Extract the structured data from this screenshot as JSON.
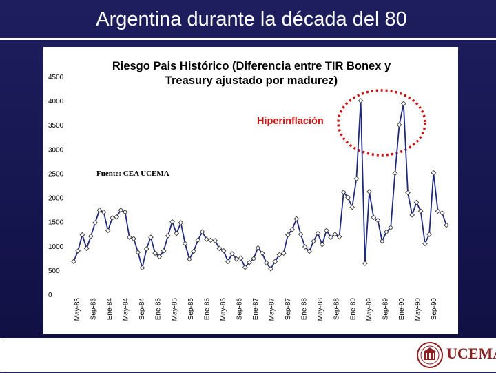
{
  "slide": {
    "title": "Argentina durante la década del 80"
  },
  "chart_data": {
    "type": "line",
    "title": "Riesgo Pais Histórico (Diferencia entre TIR Bonex y Treasury ajustado por madurez)",
    "title_lines": [
      "Riesgo Pais Histórico (Diferencia entre TIR Bonex y",
      "Treasury ajustado por madurez)"
    ],
    "source_note": "Fuente: CEA UCEMA",
    "annotation": "Hiperinflación",
    "xlabel": "",
    "ylabel": "",
    "ylim": [
      0,
      4500
    ],
    "y_ticks": [
      0,
      500,
      1000,
      1500,
      2000,
      2500,
      3000,
      3500,
      4000,
      4500
    ],
    "x_tick_labels": [
      "May-83",
      "Sep-83",
      "Ene-84",
      "May-84",
      "Sep-84",
      "Ene-85",
      "May-85",
      "Sep-85",
      "Ene-86",
      "May-86",
      "Sep-86",
      "Ene-87",
      "May-87",
      "Sep-87",
      "Ene-88",
      "May-88",
      "Sep-88",
      "Ene-89",
      "May-89",
      "Sep-89",
      "Ene-90",
      "May-90",
      "Sep-90"
    ],
    "grid": false,
    "line_color": "#1f2a7a",
    "annotation_color": "#cc1111",
    "series": [
      {
        "values": [
          680,
          900,
          1230,
          950,
          1200,
          1480,
          1740,
          1700,
          1320,
          1580,
          1600,
          1740,
          1700,
          1180,
          1150,
          870,
          550,
          940,
          1180,
          850,
          780,
          900,
          1210,
          1500,
          1260,
          1480,
          1050,
          730,
          890,
          1120,
          1290,
          1140,
          1120,
          1110,
          950,
          900,
          680,
          840,
          730,
          750,
          560,
          660,
          740,
          960,
          850,
          650,
          530,
          680,
          820,
          850,
          1230,
          1340,
          1560,
          1240,
          980,
          890,
          1100,
          1260,
          1030,
          1320,
          1180,
          1240,
          1190,
          2110,
          2000,
          1800,
          2390,
          4000,
          640,
          2120,
          1590,
          1530,
          1100,
          1290,
          1380,
          2500,
          3500,
          3940,
          2100,
          1640,
          1900,
          1720,
          1050,
          1240,
          2510,
          1720,
          1680,
          1430
        ]
      }
    ]
  },
  "branding": {
    "logo_text": "UCEMA"
  }
}
